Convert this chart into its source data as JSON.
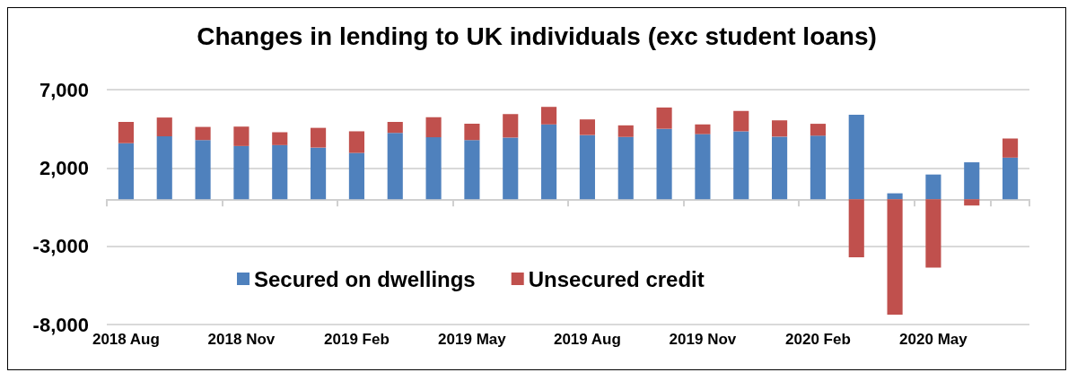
{
  "chart_data": {
    "type": "bar",
    "title": "Changes in lending to UK individuals (exc student loans)",
    "categories": [
      "2018 Aug",
      null,
      null,
      "2018 Nov",
      null,
      null,
      "2019 Feb",
      null,
      null,
      "2019 May",
      null,
      null,
      "2019 Aug",
      null,
      null,
      "2019 Nov",
      null,
      null,
      "2020 Feb",
      null,
      null,
      "2020 May",
      null,
      null
    ],
    "series": [
      {
        "name": "Secured on dwellings",
        "color": "#4f81bd",
        "values": [
          3580,
          4020,
          3780,
          3400,
          3460,
          3300,
          2960,
          4240,
          3960,
          3780,
          3940,
          4780,
          4100,
          3980,
          4500,
          4160,
          4340,
          4000,
          4060,
          5400,
          380,
          1580,
          2360,
          2660
        ]
      },
      {
        "name": "Unsecured credit",
        "color": "#c0504d",
        "values": [
          1360,
          1200,
          840,
          1240,
          820,
          1260,
          1380,
          700,
          1280,
          1040,
          1500,
          1120,
          1000,
          740,
          1360,
          620,
          1300,
          1040,
          760,
          -3700,
          -7370,
          -4370,
          -400,
          1220
        ]
      }
    ],
    "stacked": true,
    "ylim": [
      -8000,
      7000
    ],
    "yticks": [
      {
        "value": -8000,
        "label": "-8,000"
      },
      {
        "value": -3000,
        "label": "-3,000"
      },
      {
        "value": 2000,
        "label": "2,000"
      },
      {
        "value": 7000,
        "label": "7,000"
      }
    ],
    "grid": "y",
    "legend": "center"
  }
}
